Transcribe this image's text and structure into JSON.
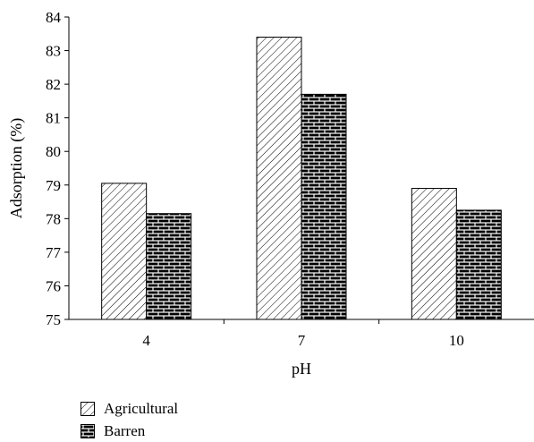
{
  "chart_data": {
    "type": "bar",
    "title": "",
    "xlabel": "pH",
    "ylabel": "Adsorption (%)",
    "categories": [
      "4",
      "7",
      "10"
    ],
    "ylim": [
      75,
      84
    ],
    "yticks": [
      75,
      76,
      77,
      78,
      79,
      80,
      81,
      82,
      83,
      84
    ],
    "series": [
      {
        "name": "Agricultural",
        "values": [
          79.05,
          83.4,
          78.9
        ],
        "pattern": "diagonal-hatch"
      },
      {
        "name": "Barren",
        "values": [
          78.15,
          81.7,
          78.25
        ],
        "pattern": "brick"
      }
    ],
    "grid": false,
    "legend_position": "bottom-left"
  }
}
